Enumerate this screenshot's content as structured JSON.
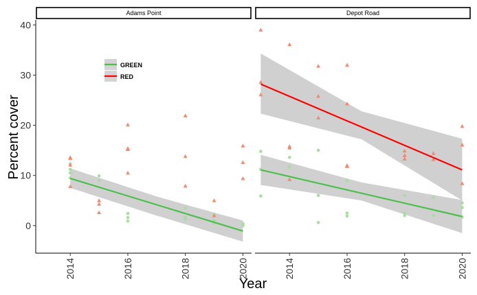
{
  "chart_data": {
    "type": "scatter",
    "xlabel": "Year",
    "ylabel": "Percent cover",
    "xlim": [
      2012.8,
      2020.3
    ],
    "ylim": [
      -5.5,
      41
    ],
    "x_ticks": [
      2014,
      2016,
      2018,
      2020
    ],
    "y_ticks": [
      0,
      10,
      20,
      30,
      40
    ],
    "grid": false,
    "legend_position": "top-left inside first panel",
    "legend": [
      {
        "name": "GREEN",
        "color": "#4dbf4d"
      },
      {
        "name": "RED",
        "color": "#ff0000"
      }
    ],
    "panels": [
      {
        "title": "Adams Point",
        "series": [
          {
            "name": "GREEN",
            "color": "#4dbf4d",
            "point_color": "#a8dca0",
            "points": [
              [
                2014,
                9.5
              ],
              [
                2014,
                10.5
              ],
              [
                2014,
                11.2
              ],
              [
                2014,
                12.3
              ],
              [
                2015,
                9.9
              ],
              [
                2015,
                9.0
              ],
              [
                2016,
                2.4
              ],
              [
                2016,
                1.6
              ],
              [
                2016,
                0.9
              ],
              [
                2018,
                3.5
              ],
              [
                2018,
                1.6
              ],
              [
                2018,
                1.3
              ],
              [
                2019,
                1.0
              ],
              [
                2019,
                0.5
              ],
              [
                2019,
                2.2
              ],
              [
                2020,
                0.4
              ],
              [
                2020,
                0.2
              ],
              [
                2020,
                0.0
              ]
            ],
            "fit": {
              "x": [
                2014,
                2020
              ],
              "y": [
                9.4,
                -1.1
              ]
            },
            "band_lower": [
              7.5,
              2.0,
              -3.2
            ],
            "band_upper": [
              11.4,
              5.8,
              1.0
            ]
          },
          {
            "name": "RED",
            "color": "#ff0000",
            "point_color": "#f08a70",
            "points": [
              [
                2014,
                13.6
              ],
              [
                2014,
                13.4
              ],
              [
                2014,
                12.1
              ],
              [
                2014,
                7.8
              ],
              [
                2015,
                5.0
              ],
              [
                2015,
                4.3
              ],
              [
                2015,
                2.6
              ],
              [
                2016,
                20.1
              ],
              [
                2016,
                15.4
              ],
              [
                2016,
                15.2
              ],
              [
                2016,
                10.5
              ],
              [
                2018,
                21.9
              ],
              [
                2018,
                13.8
              ],
              [
                2018,
                7.9
              ],
              [
                2019,
                5.0
              ],
              [
                2019,
                2.0
              ],
              [
                2020,
                15.9
              ],
              [
                2020,
                12.6
              ],
              [
                2020,
                9.4
              ]
            ]
          }
        ]
      },
      {
        "title": "Depot Road",
        "series": [
          {
            "name": "GREEN",
            "color": "#4dbf4d",
            "point_color": "#a8dca0",
            "points": [
              [
                2013,
                14.8
              ],
              [
                2013,
                11.2
              ],
              [
                2013,
                5.9
              ],
              [
                2014,
                13.6
              ],
              [
                2014,
                11.7
              ],
              [
                2015,
                15.0
              ],
              [
                2015,
                6.0
              ],
              [
                2015,
                0.6
              ],
              [
                2016,
                9.0
              ],
              [
                2016,
                2.5
              ],
              [
                2016,
                1.9
              ],
              [
                2018,
                6.0
              ],
              [
                2018,
                2.5
              ],
              [
                2018,
                2.0
              ],
              [
                2019,
                5.6
              ],
              [
                2019,
                2.0
              ],
              [
                2020,
                4.5
              ],
              [
                2020,
                3.6
              ],
              [
                2020,
                1.7
              ]
            ],
            "fit": {
              "x": [
                2013,
                2020
              ],
              "y": [
                11.1,
                1.8
              ]
            },
            "band_lower": [
              8.1,
              5.0,
              -1.5
            ],
            "band_upper": [
              14.1,
              8.6,
              5.1
            ]
          },
          {
            "name": "RED",
            "color": "#ff0000",
            "point_color": "#f08a70",
            "points": [
              [
                2013,
                39.0
              ],
              [
                2013,
                28.6
              ],
              [
                2013,
                26.1
              ],
              [
                2014,
                36.1
              ],
              [
                2014,
                15.8
              ],
              [
                2014,
                15.5
              ],
              [
                2014,
                9.2
              ],
              [
                2015,
                31.8
              ],
              [
                2015,
                25.8
              ],
              [
                2015,
                21.5
              ],
              [
                2016,
                32.0
              ],
              [
                2016,
                24.3
              ],
              [
                2016,
                12.0
              ],
              [
                2016,
                11.8
              ],
              [
                2018,
                14.9
              ],
              [
                2018,
                14.0
              ],
              [
                2018,
                13.3
              ],
              [
                2019,
                14.4
              ],
              [
                2019,
                13.2
              ],
              [
                2020,
                19.8
              ],
              [
                2020,
                16.1
              ],
              [
                2020,
                8.4
              ]
            ],
            "fit": {
              "x": [
                2013,
                2020
              ],
              "y": [
                28.2,
                11.1
              ]
            },
            "band_lower": [
              22.3,
              17.2,
              5.0
            ],
            "band_upper": [
              34.3,
              22.8,
              17.3
            ]
          }
        ]
      }
    ]
  }
}
